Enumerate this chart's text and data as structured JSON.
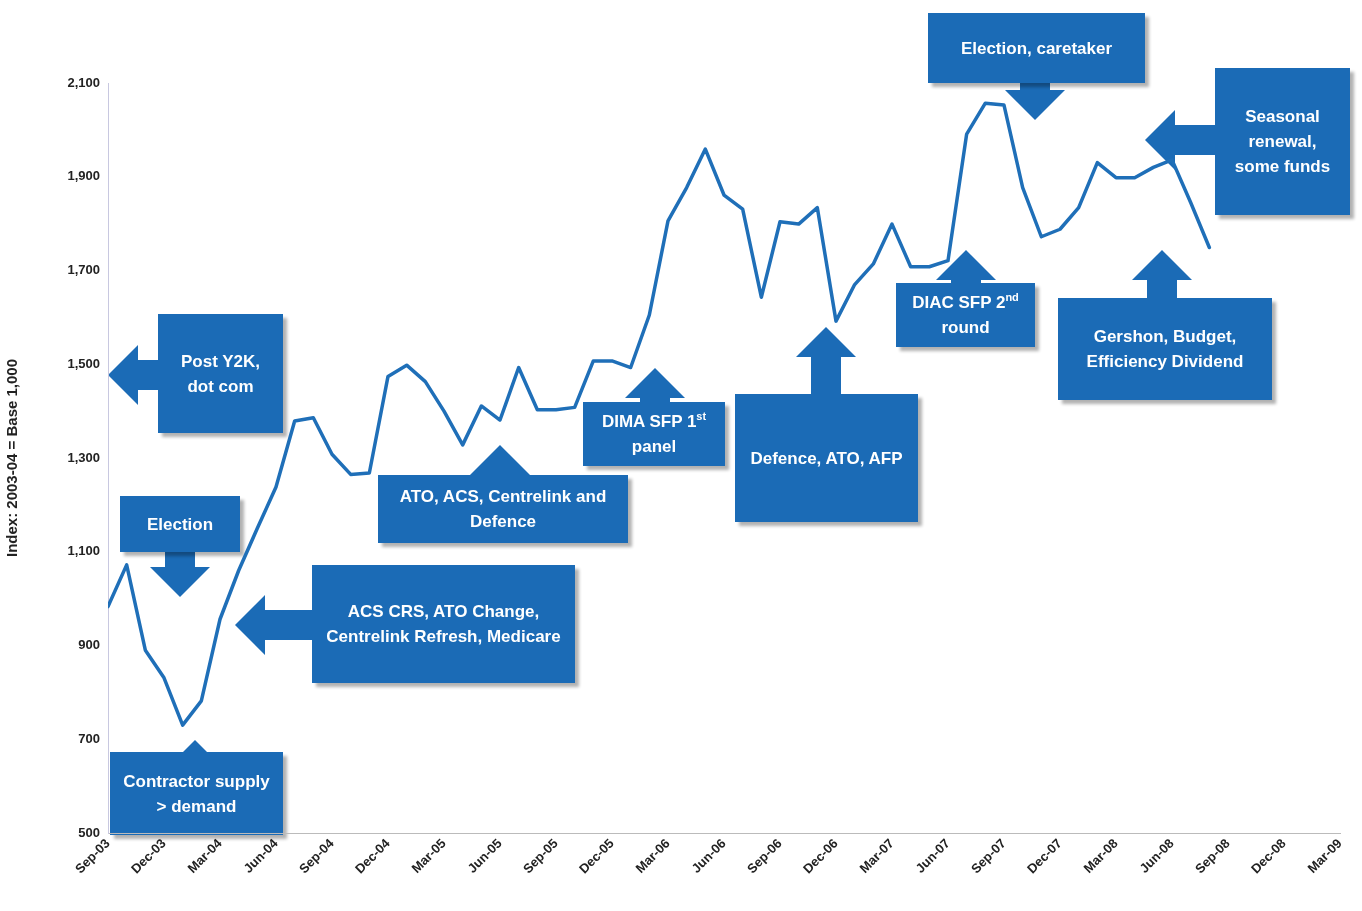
{
  "chart_data": {
    "type": "line",
    "ylabel": "Index: 2003-04 = Base 1,000",
    "color": "#1f6fb8",
    "x": [
      "2003-09",
      "2003-10",
      "2003-11",
      "2003-12",
      "2004-01",
      "2004-02",
      "2004-03",
      "2004-04",
      "2004-05",
      "2004-06",
      "2004-07",
      "2004-08",
      "2004-09",
      "2004-10",
      "2004-11",
      "2004-12",
      "2005-01",
      "2005-02",
      "2005-03",
      "2005-04",
      "2005-05",
      "2005-06",
      "2005-07",
      "2005-08",
      "2005-09",
      "2005-10",
      "2005-11",
      "2005-12",
      "2006-01",
      "2006-02",
      "2006-03",
      "2006-04",
      "2006-05",
      "2006-06",
      "2006-07",
      "2006-08",
      "2006-09",
      "2006-10",
      "2006-11",
      "2006-12",
      "2007-01",
      "2007-02",
      "2007-03",
      "2007-04",
      "2007-05",
      "2007-06",
      "2007-07",
      "2007-08",
      "2007-09",
      "2007-10",
      "2007-11",
      "2007-12",
      "2008-01",
      "2008-02",
      "2008-03",
      "2008-04",
      "2008-05",
      "2008-06",
      "2008-07",
      "2008-08"
    ],
    "values": [
      983,
      1072,
      890,
      831,
      730,
      782,
      956,
      1060,
      1150,
      1238,
      1379,
      1386,
      1308,
      1265,
      1268,
      1474,
      1498,
      1463,
      1400,
      1328,
      1411,
      1381,
      1493,
      1403,
      1403,
      1408,
      1507,
      1507,
      1493,
      1605,
      1806,
      1877,
      1959,
      1861,
      1831,
      1643,
      1804,
      1799,
      1834,
      1592,
      1670,
      1714,
      1799,
      1708,
      1708,
      1721,
      1991,
      2057,
      2053,
      1877,
      1772,
      1788,
      1834,
      1930,
      1898,
      1898,
      1920,
      1936,
      1845,
      1749
    ],
    "xlim": [
      "2003-09",
      "2009-03"
    ],
    "xticks": [
      {
        "value": "2003-09",
        "label": "Sep-03"
      },
      {
        "value": "2003-12",
        "label": "Dec-03"
      },
      {
        "value": "2004-03",
        "label": "Mar-04"
      },
      {
        "value": "2004-06",
        "label": "Jun-04"
      },
      {
        "value": "2004-09",
        "label": "Sep-04"
      },
      {
        "value": "2004-12",
        "label": "Dec-04"
      },
      {
        "value": "2005-03",
        "label": "Mar-05"
      },
      {
        "value": "2005-06",
        "label": "Jun-05"
      },
      {
        "value": "2005-09",
        "label": "Sep-05"
      },
      {
        "value": "2005-12",
        "label": "Dec-05"
      },
      {
        "value": "2006-03",
        "label": "Mar-06"
      },
      {
        "value": "2006-06",
        "label": "Jun-06"
      },
      {
        "value": "2006-09",
        "label": "Sep-06"
      },
      {
        "value": "2006-12",
        "label": "Dec-06"
      },
      {
        "value": "2007-03",
        "label": "Mar-07"
      },
      {
        "value": "2007-06",
        "label": "Jun-07"
      },
      {
        "value": "2007-09",
        "label": "Sep-07"
      },
      {
        "value": "2007-12",
        "label": "Dec-07"
      },
      {
        "value": "2008-03",
        "label": "Mar-08"
      },
      {
        "value": "2008-06",
        "label": "Jun-08"
      },
      {
        "value": "2008-09",
        "label": "Sep-08"
      },
      {
        "value": "2008-12",
        "label": "Dec-08"
      },
      {
        "value": "2009-03",
        "label": "Mar-09"
      }
    ],
    "ylim": [
      500,
      2100
    ],
    "yticks": [
      500,
      700,
      900,
      {
        "value": 1100,
        "label": "1,100"
      },
      {
        "value": 1300,
        "label": "1,300"
      },
      {
        "value": 1500,
        "label": "1,500"
      },
      {
        "value": 1700,
        "label": "1,700"
      },
      {
        "value": 1900,
        "label": "1,900"
      },
      {
        "value": 2100,
        "label": "2,100"
      }
    ],
    "annotations": [
      "Post Y2K, dot com",
      "Election",
      "Contractor supply > demand",
      "ACS CRS, ATO Change, Centrelink Refresh, Medicare",
      "ATO, ACS, Centrelink and Defence",
      "DIMA SFP 1$^{st}$ panel",
      "Defence, ATO, AFP",
      "DIAC SFP 2$^{nd}$ round",
      "Election, caretaker",
      "Seasonal renewal, some funds",
      "Gershon, Budget, Efficiency Dividend"
    ]
  }
}
